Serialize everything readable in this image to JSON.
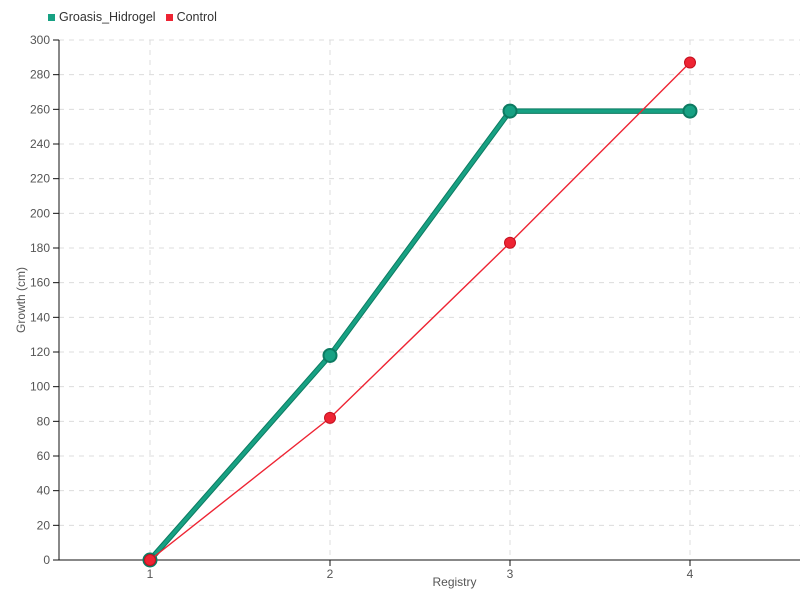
{
  "chart_data": {
    "type": "line",
    "title": "",
    "xlabel": "Registry",
    "ylabel": "Growth (cm)",
    "x": [
      1,
      2,
      3,
      4
    ],
    "xticks": [
      1,
      2,
      3,
      4
    ],
    "yticks": [
      0,
      20,
      40,
      60,
      80,
      100,
      120,
      140,
      160,
      180,
      200,
      220,
      240,
      260,
      280,
      300
    ],
    "xlim": [
      1,
      4
    ],
    "ylim": [
      0,
      300
    ],
    "grid": "dashed",
    "grid_color": "#dcdcdc",
    "legend_position": "top-left",
    "series": [
      {
        "name": "Groasis_Hidrogel",
        "color": "#17a183",
        "edge_color": "#0c7a61",
        "values": [
          0,
          118,
          259,
          259
        ],
        "line_width": 3.5,
        "marker_radius": 6.5,
        "marker_stroke_width": 2,
        "outlined": true
      },
      {
        "name": "Control",
        "color": "#ee2433",
        "edge_color": "#c3101f",
        "values": [
          0,
          82,
          183,
          287
        ],
        "line_width": 1.4,
        "marker_radius": 5.5,
        "marker_stroke_width": 1,
        "outlined": false
      }
    ]
  }
}
